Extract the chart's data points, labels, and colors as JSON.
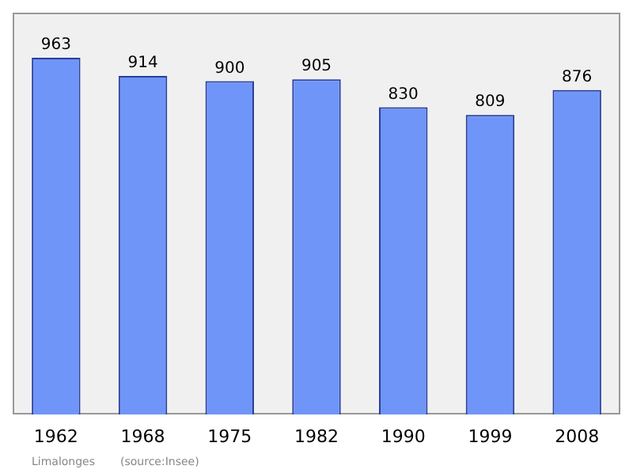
{
  "chart_data": {
    "type": "bar",
    "categories": [
      "1962",
      "1968",
      "1975",
      "1982",
      "1990",
      "1999",
      "2008"
    ],
    "values": [
      963,
      914,
      900,
      905,
      830,
      809,
      876
    ],
    "color": "#7095f8",
    "ylim": [
      0,
      1085
    ],
    "data_labels": true,
    "tick_labels": "x",
    "grid": false,
    "legend": false,
    "annotations": [
      "Limalonges",
      "(source:Insee)"
    ]
  }
}
